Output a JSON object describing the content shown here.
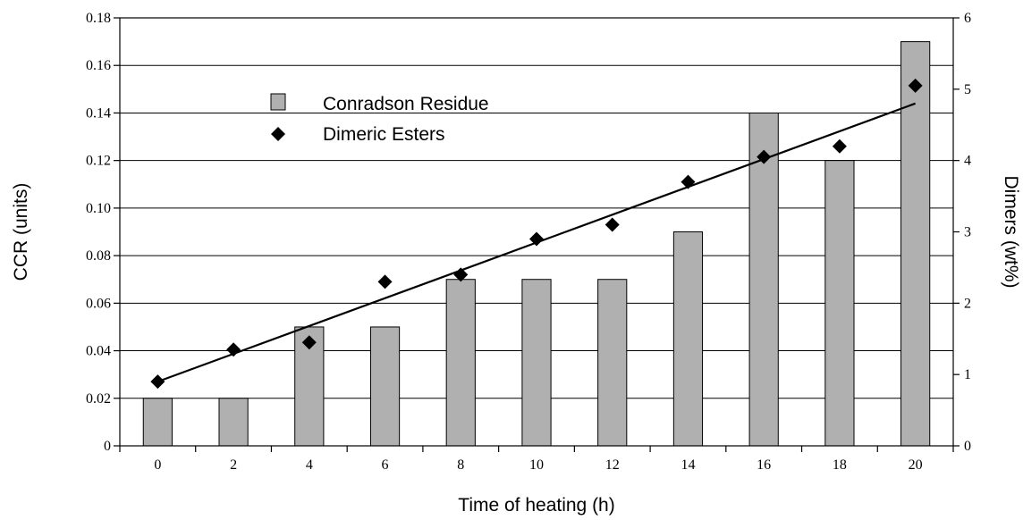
{
  "chart_data": {
    "type": "bar",
    "categories": [
      "0",
      "2",
      "4",
      "6",
      "8",
      "10",
      "12",
      "14",
      "16",
      "18",
      "20"
    ],
    "series": [
      {
        "name": "Conradson Residue",
        "type": "bar",
        "axis": "left",
        "values": [
          0.02,
          0.02,
          0.05,
          0.05,
          0.07,
          0.07,
          0.07,
          0.09,
          0.14,
          0.12,
          0.17
        ],
        "color": "#b0b0b0"
      },
      {
        "name": "Dimeric Esters",
        "type": "scatter",
        "axis": "right",
        "values": [
          0.9,
          1.35,
          1.45,
          2.3,
          2.4,
          2.9,
          3.1,
          3.7,
          4.05,
          4.2,
          5.05
        ],
        "color": "#000000"
      }
    ],
    "trendline": {
      "series": "Dimeric Esters",
      "start": 0.9,
      "end": 4.8
    },
    "xlabel": "Time of heating (h)",
    "ylabel": "CCR (units)",
    "y2label": "Dimers (wt%)",
    "ylim": [
      0,
      0.18
    ],
    "y2lim": [
      0,
      6
    ],
    "yticks": [
      "0",
      "0.02",
      "0.04",
      "0.06",
      "0.08",
      "0.10",
      "0.12",
      "0.14",
      "0.16",
      "0.18"
    ],
    "y2ticks": [
      "0",
      "1",
      "2",
      "3",
      "4",
      "5",
      "6"
    ],
    "grid": true,
    "legend_position": "top-left"
  }
}
